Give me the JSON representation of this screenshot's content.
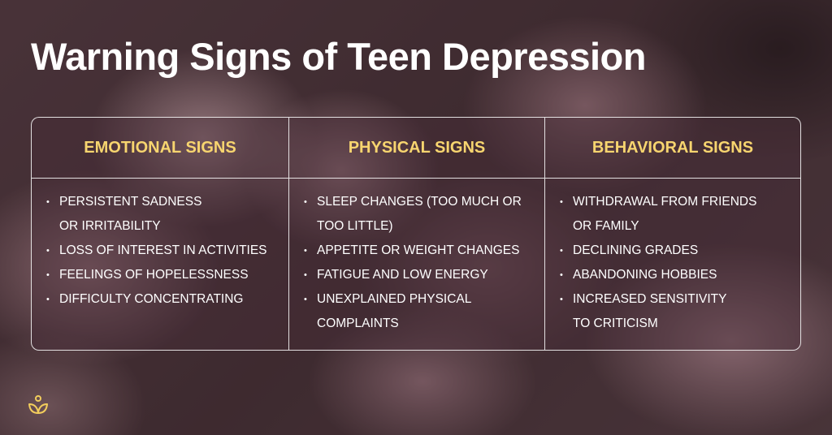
{
  "title": "Warning Signs of Teen Depression",
  "columns": [
    {
      "heading": "EMOTIONAL SIGNS",
      "items": [
        "PERSISTENT SADNESS OR IRRITABILITY",
        "LOSS OF INTEREST IN ACTIVITIES",
        "FEELINGS OF HOPELESSNESS",
        "DIFFICULTY CONCENTRATING"
      ]
    },
    {
      "heading": "PHYSICAL SIGNS",
      "items": [
        "SLEEP CHANGES (TOO MUCH OR TOO LITTLE)",
        "APPETITE OR WEIGHT CHANGES",
        "FATIGUE AND LOW ENERGY",
        "UNEXPLAINED PHYSICAL COMPLAINTS"
      ]
    },
    {
      "heading": "BEHAVIORAL SIGNS",
      "items": [
        "WITHDRAWAL FROM FRIENDS OR FAMILY",
        "DECLINING GRADES",
        "ABANDONING HOBBIES",
        "INCREASED SENSITIVITY TO CRITICISM"
      ]
    }
  ],
  "colors": {
    "heading": "#f7d56f",
    "text": "#ffffff"
  },
  "logo_icon": "lotus-person-icon"
}
